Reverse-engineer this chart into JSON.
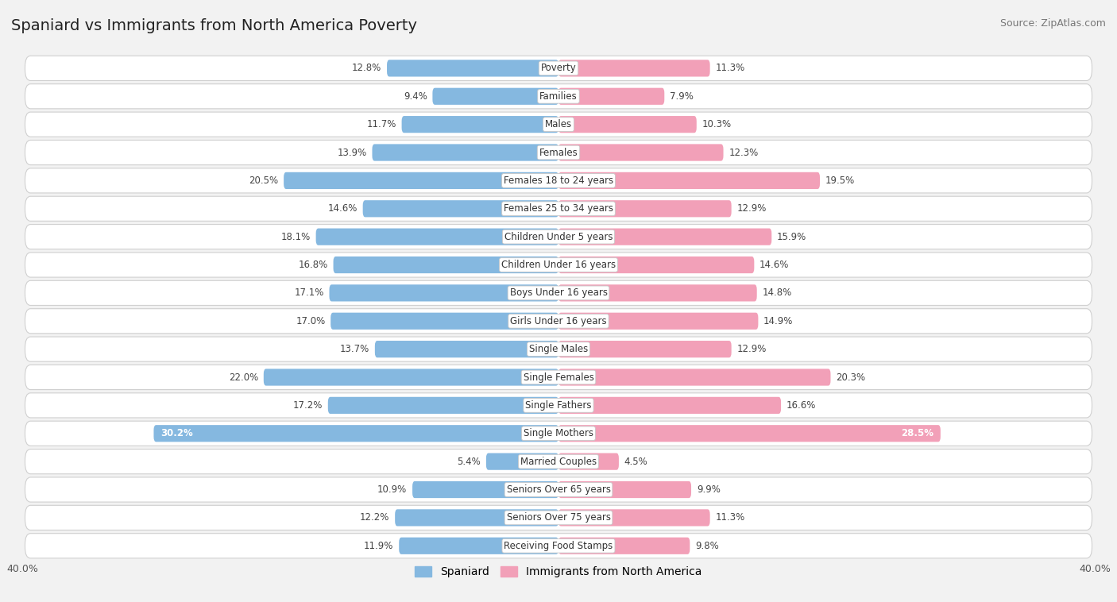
{
  "title": "Spaniard vs Immigrants from North America Poverty",
  "source": "Source: ZipAtlas.com",
  "categories": [
    "Poverty",
    "Families",
    "Males",
    "Females",
    "Females 18 to 24 years",
    "Females 25 to 34 years",
    "Children Under 5 years",
    "Children Under 16 years",
    "Boys Under 16 years",
    "Girls Under 16 years",
    "Single Males",
    "Single Females",
    "Single Fathers",
    "Single Mothers",
    "Married Couples",
    "Seniors Over 65 years",
    "Seniors Over 75 years",
    "Receiving Food Stamps"
  ],
  "spaniard": [
    12.8,
    9.4,
    11.7,
    13.9,
    20.5,
    14.6,
    18.1,
    16.8,
    17.1,
    17.0,
    13.7,
    22.0,
    17.2,
    30.2,
    5.4,
    10.9,
    12.2,
    11.9
  ],
  "immigrants": [
    11.3,
    7.9,
    10.3,
    12.3,
    19.5,
    12.9,
    15.9,
    14.6,
    14.8,
    14.9,
    12.9,
    20.3,
    16.6,
    28.5,
    4.5,
    9.9,
    11.3,
    9.8
  ],
  "spaniard_color": "#85b8e0",
  "immigrant_color": "#f2a0b8",
  "spaniard_label": "Spaniard",
  "immigrant_label": "Immigrants from North America",
  "axis_limit": 40.0,
  "bg_color": "#f2f2f2",
  "title_fontsize": 14,
  "source_fontsize": 9,
  "label_fontsize": 8.5,
  "value_fontsize": 8.5,
  "legend_fontsize": 10
}
